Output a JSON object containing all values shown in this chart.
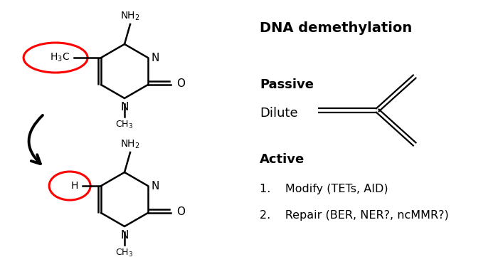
{
  "bg_color": "#ffffff",
  "title_text": "DNA demethylation",
  "passive_text": "Passive",
  "dilute_text": "Dilute",
  "active_text": "Active",
  "item1_text": "1.    Modify (TETs, AID)",
  "item2_text": "2.    Repair (BER, NER?, ncMMR?)",
  "circle_color": "#ff0000",
  "line_color": "#000000",
  "arrow_color": "#000000",
  "text_color": "#000000",
  "title_fontsize": 14,
  "label_fontsize": 13,
  "body_fontsize": 11.5,
  "mol_fontsize": 10
}
